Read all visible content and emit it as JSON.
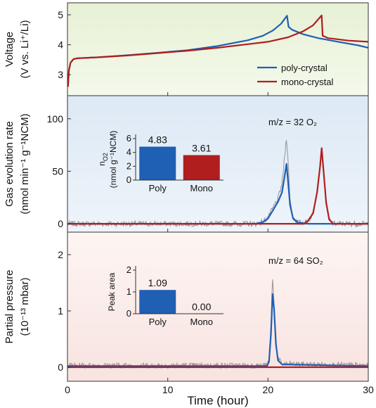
{
  "chart_data": {
    "type": "line",
    "x": {
      "label": "Time (hour)",
      "lim": [
        0,
        30
      ],
      "ticks": [
        "0",
        "10",
        "20",
        "30"
      ]
    },
    "panels": [
      {
        "id": "voltage",
        "ylabel_line1": "Voltage",
        "ylabel_line2": "(V vs. Li⁺/Li)",
        "ylim": [
          2.3,
          5.4
        ],
        "yticks": [
          "3",
          "4",
          "5"
        ],
        "background": "#eef6df",
        "legend": {
          "placement": "bottom-right",
          "items": [
            "poly-crystal",
            "mono-crystal"
          ]
        },
        "series": [
          {
            "name": "poly-crystal",
            "color": "#1f5fb4",
            "points": [
              [
                0.05,
                2.6
              ],
              [
                0.15,
                3.15
              ],
              [
                0.3,
                3.4
              ],
              [
                0.6,
                3.52
              ],
              [
                1,
                3.55
              ],
              [
                3,
                3.58
              ],
              [
                6,
                3.65
              ],
              [
                9,
                3.73
              ],
              [
                12,
                3.82
              ],
              [
                15,
                3.96
              ],
              [
                18,
                4.15
              ],
              [
                19.5,
                4.3
              ],
              [
                20.5,
                4.48
              ],
              [
                21.3,
                4.7
              ],
              [
                21.9,
                4.97
              ],
              [
                22.05,
                4.6
              ],
              [
                22.4,
                4.5
              ],
              [
                23.5,
                4.35
              ],
              [
                25,
                4.22
              ],
              [
                27,
                4.1
              ],
              [
                29,
                3.98
              ],
              [
                30,
                3.9
              ]
            ]
          },
          {
            "name": "mono-crystal",
            "color": "#b01e1e",
            "points": [
              [
                0.05,
                2.6
              ],
              [
                0.15,
                3.15
              ],
              [
                0.3,
                3.4
              ],
              [
                0.6,
                3.52
              ],
              [
                1,
                3.55
              ],
              [
                3,
                3.58
              ],
              [
                6,
                3.64
              ],
              [
                9,
                3.72
              ],
              [
                12,
                3.8
              ],
              [
                15,
                3.9
              ],
              [
                18,
                4.02
              ],
              [
                20,
                4.1
              ],
              [
                22,
                4.25
              ],
              [
                23.5,
                4.45
              ],
              [
                24.5,
                4.65
              ],
              [
                25.2,
                4.92
              ],
              [
                25.35,
                4.98
              ],
              [
                25.45,
                4.3
              ],
              [
                26,
                4.22
              ],
              [
                28,
                4.14
              ],
              [
                30,
                4.1
              ]
            ]
          }
        ]
      },
      {
        "id": "o2",
        "ylabel_line1": "Gas evolution rate",
        "ylabel_line2": "(nmol min⁻¹ g⁻¹NCM)",
        "ylim": [
          -8,
          122
        ],
        "yticks": [
          "0",
          "50",
          "100"
        ],
        "background": "#e3edf7",
        "annotation": "m/z = 32 O₂",
        "series": [
          {
            "name": "poly-crystal",
            "color": "#1f5fb4",
            "points": [
              [
                0,
                0
              ],
              [
                18.8,
                0
              ],
              [
                19.5,
                1.5
              ],
              [
                20,
                5
              ],
              [
                20.5,
                13
              ],
              [
                21,
                21
              ],
              [
                21.4,
                30
              ],
              [
                21.7,
                48
              ],
              [
                21.85,
                57
              ],
              [
                22,
                40
              ],
              [
                22.2,
                18
              ],
              [
                22.5,
                5
              ],
              [
                23,
                1
              ],
              [
                24,
                0
              ],
              [
                30,
                0
              ]
            ]
          },
          {
            "name": "mono-crystal",
            "color": "#b01e1e",
            "points": [
              [
                0,
                0
              ],
              [
                23.6,
                0
              ],
              [
                24,
                3
              ],
              [
                24.5,
                10
              ],
              [
                24.9,
                30
              ],
              [
                25.2,
                55
              ],
              [
                25.35,
                72
              ],
              [
                25.5,
                55
              ],
              [
                25.8,
                20
              ],
              [
                26.1,
                4
              ],
              [
                26.5,
                0
              ],
              [
                30,
                0
              ]
            ]
          },
          {
            "name": "raw",
            "color": "#8c8c8c",
            "points": [
              [
                0,
                0
              ],
              [
                18.8,
                0
              ],
              [
                19.5,
                2
              ],
              [
                20,
                6
              ],
              [
                20.5,
                15
              ],
              [
                21,
                24
              ],
              [
                21.4,
                38
              ],
              [
                21.7,
                68
              ],
              [
                21.85,
                83
              ],
              [
                22,
                60
              ],
              [
                22.2,
                22
              ],
              [
                22.5,
                6
              ],
              [
                23,
                1
              ],
              [
                24,
                2
              ],
              [
                24.5,
                10
              ],
              [
                24.9,
                32
              ],
              [
                25.2,
                58
              ],
              [
                25.35,
                70
              ],
              [
                25.5,
                55
              ],
              [
                25.8,
                20
              ],
              [
                26.1,
                4
              ],
              [
                26.5,
                0
              ],
              [
                30,
                0
              ]
            ]
          }
        ],
        "inset": {
          "ylabel_line1": "n",
          "ylabel_line2": "(nmol g⁻¹NCM)",
          "ylim": [
            0,
            6
          ],
          "yticks": [
            "0",
            "2",
            "4",
            "6"
          ],
          "bars": [
            {
              "category": "Poly",
              "value": 4.83,
              "label": "4.83",
              "color": "#1f5fb4"
            },
            {
              "category": "Mono",
              "value": 3.61,
              "label": "3.61",
              "color": "#b01e1e"
            }
          ]
        }
      },
      {
        "id": "so2",
        "ylabel_line1": "Partial pressure",
        "ylabel_line2": "(10⁻¹³ mbar)",
        "ylim": [
          -0.25,
          2.4
        ],
        "yticks": [
          "0",
          "1",
          "2"
        ],
        "background": "#faecea",
        "annotation": "m/z = 64 SO₂",
        "series": [
          {
            "name": "poly-crystal",
            "color": "#1f5fb4",
            "points": [
              [
                0,
                0.02
              ],
              [
                19.9,
                0.02
              ],
              [
                20.1,
                0.1
              ],
              [
                20.3,
                0.6
              ],
              [
                20.45,
                1.3
              ],
              [
                20.6,
                1.05
              ],
              [
                20.8,
                0.4
              ],
              [
                21,
                0.12
              ],
              [
                21.4,
                0.05
              ],
              [
                30,
                0.02
              ]
            ]
          },
          {
            "name": "mono-crystal",
            "color": "#b01e1e",
            "points": [
              [
                0,
                0.0
              ],
              [
                30,
                0.0
              ]
            ]
          },
          {
            "name": "raw",
            "color": "#8c8c8c",
            "points": [
              [
                0,
                0.03
              ],
              [
                19.9,
                0.03
              ],
              [
                20.1,
                0.15
              ],
              [
                20.3,
                0.75
              ],
              [
                20.45,
                1.58
              ],
              [
                20.6,
                1.15
              ],
              [
                20.8,
                0.45
              ],
              [
                21,
                0.15
              ],
              [
                21.4,
                0.06
              ],
              [
                30,
                0.03
              ]
            ]
          }
        ],
        "inset": {
          "ylabel_line1": "Peak area",
          "ylabel_line2": "",
          "ylim": [
            0,
            2
          ],
          "yticks": [
            "0",
            "1",
            "2"
          ],
          "bars": [
            {
              "category": "Poly",
              "value": 1.09,
              "label": "1.09",
              "color": "#1f5fb4"
            },
            {
              "category": "Mono",
              "value": 0.0,
              "label": "0.00",
              "color": "#b01e1e"
            }
          ]
        }
      }
    ]
  }
}
